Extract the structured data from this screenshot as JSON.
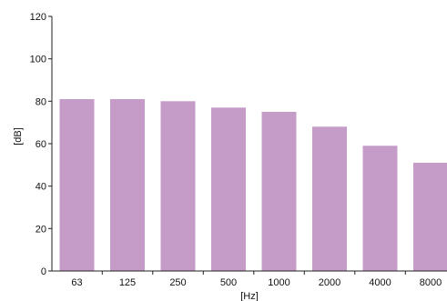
{
  "chart_data": {
    "type": "bar",
    "categories": [
      "63",
      "125",
      "250",
      "500",
      "1000",
      "2000",
      "4000",
      "8000"
    ],
    "values": [
      81,
      81,
      80,
      77,
      75,
      68,
      59,
      51
    ],
    "xlabel": "[Hz]",
    "ylabel": "[dB]",
    "ylim": [
      0,
      120
    ],
    "yticks": [
      0,
      20,
      40,
      60,
      80,
      100,
      120
    ],
    "grid": false,
    "legend": "none",
    "bar_color": "#c59bc7",
    "axis_color": "#222222",
    "background": "#ffffff"
  }
}
